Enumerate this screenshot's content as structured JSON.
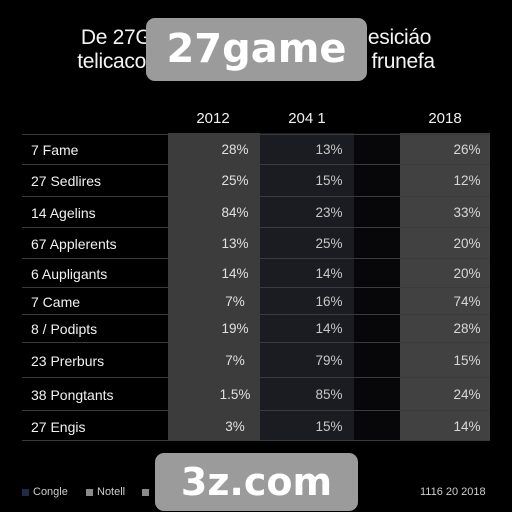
{
  "header": {
    "title_line1": "De 27Ga                                   desiciáo",
    "title_line2": "telicaco, c                                ds frunefa"
  },
  "watermark": {
    "top": "27game",
    "bottom": "3z.com"
  },
  "table": {
    "years": [
      "2012",
      "204 1",
      "2018"
    ],
    "rows": [
      {
        "label": "7 Fame",
        "v": [
          "28%",
          "13%",
          "26%"
        ]
      },
      {
        "label": "27 Sedlires",
        "v": [
          "25%",
          "15%",
          "12%"
        ]
      },
      {
        "label": "14 Agelins",
        "v": [
          "84%",
          "23%",
          "33%"
        ]
      },
      {
        "label": "67 Applerents",
        "v": [
          "13%",
          "25%",
          "20%"
        ]
      },
      {
        "label": "6 Aupligants",
        "v": [
          "14%",
          "14%",
          "20%"
        ]
      },
      {
        "label": "7 Came",
        "v": [
          "7%",
          "16%",
          "74%"
        ]
      },
      {
        "label": "8 / Podipts",
        "v": [
          "19%",
          "14%",
          "28%"
        ]
      },
      {
        "label": "23 Prerburs",
        "v": [
          "7%",
          "79%",
          "15%"
        ]
      },
      {
        "label": "38 Pongtants",
        "v": [
          "1.5%",
          "85%",
          "24%"
        ]
      },
      {
        "label": "27 Engis",
        "v": [
          "3%",
          "15%",
          "14%"
        ]
      }
    ]
  },
  "legend": {
    "items": [
      {
        "label": "Congle",
        "color": "#1f2a44"
      },
      {
        "label": "Notell",
        "color": "#8a8a8a"
      },
      {
        "label": "",
        "color": "#8a8a8a"
      }
    ],
    "date": "1116 20 2018"
  }
}
